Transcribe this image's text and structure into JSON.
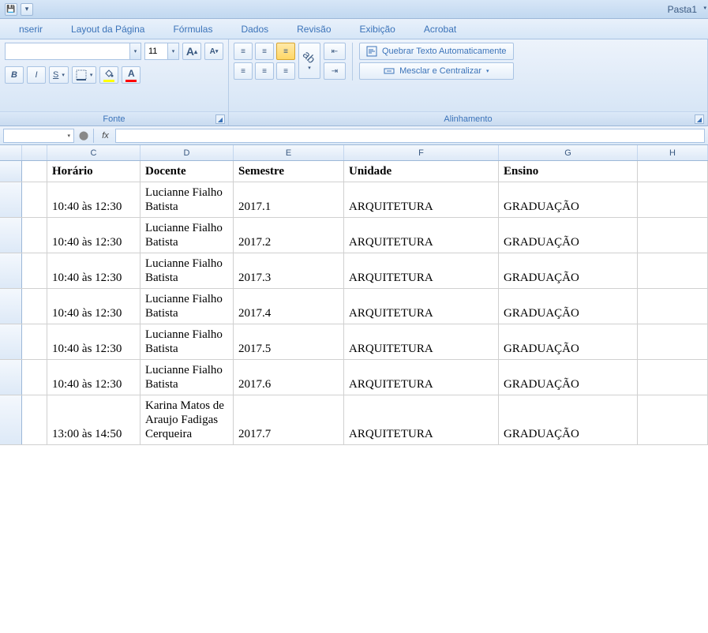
{
  "title": "Pasta1",
  "tabs": [
    "nserir",
    "Layout da Página",
    "Fórmulas",
    "Dados",
    "Revisão",
    "Exibição",
    "Acrobat"
  ],
  "font": {
    "size": "11",
    "group_label": "Fonte",
    "bold": "B",
    "italic": "I",
    "underline": "S"
  },
  "align": {
    "group_label": "Alinhamento",
    "wrap_label": "Quebrar Texto Automaticamente",
    "merge_label": "Mesclar e Centralizar"
  },
  "formula_bar": {
    "fx": "fx"
  },
  "columns": [
    {
      "letter": "",
      "cls": "w-b"
    },
    {
      "letter": "C",
      "cls": "w-c"
    },
    {
      "letter": "D",
      "cls": "w-d"
    },
    {
      "letter": "E",
      "cls": "w-e"
    },
    {
      "letter": "F",
      "cls": "w-f"
    },
    {
      "letter": "G",
      "cls": "w-g"
    },
    {
      "letter": "H",
      "cls": "w-h"
    }
  ],
  "headers": [
    "",
    "Horário",
    "Docente",
    "Semestre",
    "Unidade",
    "Ensino",
    ""
  ],
  "rows": [
    [
      "",
      "10:40 às 12:30",
      "Lucianne Fialho Batista",
      "2017.1",
      "ARQUITETURA",
      "GRADUAÇÃO",
      ""
    ],
    [
      "",
      "10:40 às 12:30",
      "Lucianne Fialho Batista",
      "2017.2",
      "ARQUITETURA",
      "GRADUAÇÃO",
      ""
    ],
    [
      "",
      "10:40 às 12:30",
      "Lucianne Fialho Batista",
      "2017.3",
      "ARQUITETURA",
      "GRADUAÇÃO",
      ""
    ],
    [
      "",
      "10:40 às 12:30",
      "Lucianne Fialho Batista",
      "2017.4",
      "ARQUITETURA",
      "GRADUAÇÃO",
      ""
    ],
    [
      "",
      "10:40 às 12:30",
      "Lucianne Fialho Batista",
      "2017.5",
      "ARQUITETURA",
      "GRADUAÇÃO",
      ""
    ],
    [
      "",
      "10:40 às 12:30",
      "Lucianne Fialho Batista",
      "2017.6",
      "ARQUITETURA",
      "GRADUAÇÃO",
      ""
    ],
    [
      "",
      "13:00 às 14:50",
      "Karina Matos de Araujo Fadigas Cerqueira",
      "2017.7",
      "ARQUITETURA",
      "GRADUAÇÃO",
      ""
    ]
  ],
  "colors": {
    "fill_swatch": "#ffff00",
    "font_swatch": "#ff0000"
  }
}
